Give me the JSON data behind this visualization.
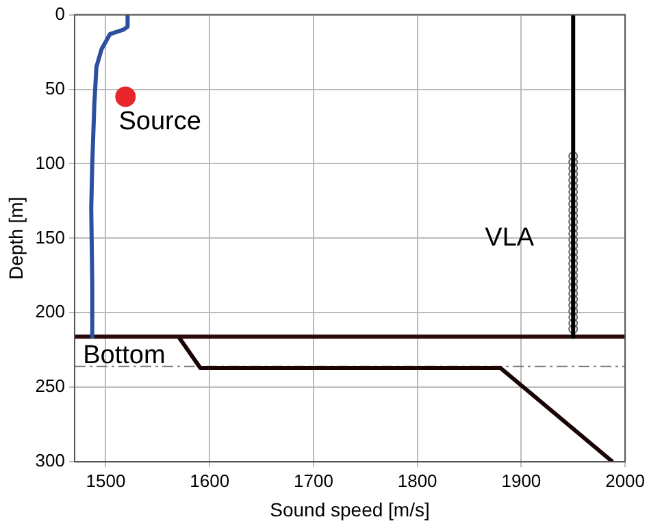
{
  "chart_data": {
    "type": "line",
    "xlabel": "Sound speed [m/s]",
    "ylabel": "Depth [m]",
    "xlim": [
      1470,
      2000
    ],
    "xticks": [
      1500,
      1600,
      1700,
      1800,
      1900,
      2000
    ],
    "ylim": [
      300,
      0
    ],
    "yticks": [
      0,
      50,
      100,
      150,
      200,
      250,
      300
    ],
    "grid": true,
    "legend": false,
    "series": [
      {
        "color": "#2c4fa0",
        "x": [
          1521,
          1521,
          1517,
          1504,
          1496,
          1491,
          1489,
          1487,
          1486,
          1487,
          1487
        ],
        "values": [
          0,
          8,
          10,
          13,
          23,
          35,
          60,
          100,
          130,
          180,
          216
        ]
      },
      {
        "type": "scatter",
        "marker": "circle",
        "color": "#e8262a",
        "x": [
          1519
        ],
        "values": [
          55
        ]
      },
      {
        "color": "#000000",
        "x": [
          1950,
          1950
        ],
        "values": [
          0,
          216
        ]
      },
      {
        "type": "scatter",
        "marker": "circle",
        "color": "#666666",
        "x": [
          1950,
          1950,
          1950,
          1950,
          1950,
          1950,
          1950,
          1950,
          1950,
          1950,
          1950,
          1950,
          1950,
          1950,
          1950,
          1950,
          1950,
          1950,
          1950,
          1950,
          1950,
          1950,
          1950,
          1950,
          1950,
          1950,
          1950,
          1950,
          1950,
          1950
        ],
        "values": [
          95,
          99,
          103,
          107,
          111,
          115,
          119,
          123,
          127,
          131,
          135,
          139,
          143,
          147,
          151,
          155,
          159,
          163,
          167,
          171,
          175,
          179,
          183,
          187,
          191,
          195,
          199,
          203,
          207,
          211
        ]
      },
      {
        "color": "#2a0a0a",
        "x": [
          1470,
          2000
        ],
        "values": [
          216,
          216
        ]
      },
      {
        "color": "#1a0505",
        "x": [
          1570,
          1591,
          1880,
          1988
        ],
        "values": [
          216,
          237,
          237,
          300
        ]
      }
    ],
    "ref_lines": [
      {
        "axis": "y",
        "value": 236,
        "color": "#777777",
        "line_style": "dashed"
      }
    ],
    "annotations": [
      "Source",
      "VLA",
      "Bottom"
    ]
  }
}
